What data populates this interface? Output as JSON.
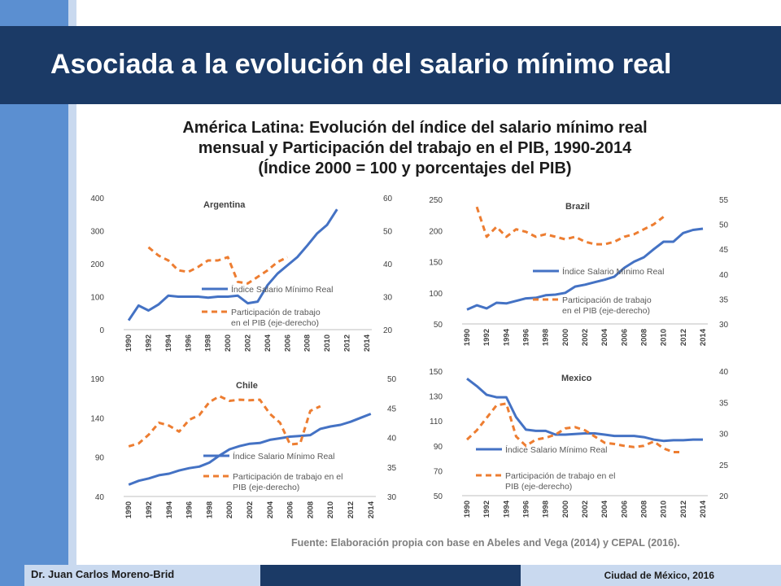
{
  "slide": {
    "title": "Asociada a la evolución del salario mínimo real",
    "subtitle_lines": [
      "América Latina: Evolución del índice del salario mínimo real",
      "mensual y Participación del trabajo en el PIB, 1990-2014",
      "(Índice 2000 = 100 y porcentajes del PIB)"
    ],
    "source": "Fuente: Elaboración propia con base en Abeles and Vega (2014) y CEPAL (2016).",
    "footer_author": "Dr. Juan Carlos Moreno-Brid",
    "footer_city": "Ciudad de México, 2016"
  },
  "colors": {
    "header_bg": "#1b3a66",
    "left_bar": "#5b8fd1",
    "salary_line": "#4472c4",
    "labor_share_line": "#ed7d31"
  },
  "chart_data": [
    {
      "type": "line",
      "title": "Argentina",
      "x": [
        1990,
        1991,
        1992,
        1993,
        1994,
        1995,
        1996,
        1997,
        1998,
        1999,
        2000,
        2001,
        2002,
        2003,
        2004,
        2005,
        2006,
        2007,
        2008,
        2009,
        2010,
        2011,
        2012,
        2013,
        2014
      ],
      "x_ticks": [
        "1990",
        "1992",
        "1994",
        "1996",
        "1998",
        "2000",
        "2002",
        "2004",
        "2006",
        "2008",
        "2010",
        "2012",
        "2014"
      ],
      "y_left": {
        "lim": [
          0,
          400
        ],
        "ticks": [
          "0",
          "100",
          "200",
          "300",
          "400"
        ]
      },
      "y_right": {
        "lim": [
          20,
          60
        ],
        "ticks": [
          "20",
          "30",
          "40",
          "50",
          "60"
        ]
      },
      "series": [
        {
          "name": "Índice Salario Mínimo Real",
          "axis": "left",
          "style": "solid",
          "values": [
            28,
            73,
            58,
            76,
            103,
            100,
            100,
            100,
            97,
            100,
            100,
            103,
            80,
            85,
            135,
            170,
            195,
            220,
            255,
            292,
            318,
            365,
            null,
            null,
            null
          ]
        },
        {
          "name": "Participación de trabajo en el PIB (eje-derecho)",
          "axis": "right",
          "style": "dashed",
          "values": [
            null,
            null,
            45,
            42.5,
            41,
            38,
            37.5,
            39,
            41,
            41,
            42,
            34.5,
            34,
            36,
            38,
            40.5,
            42,
            null,
            null,
            null,
            null,
            null,
            null,
            null,
            null
          ]
        }
      ],
      "legend": "center-right"
    },
    {
      "type": "line",
      "title": "Brazil",
      "x": [
        1990,
        1991,
        1992,
        1993,
        1994,
        1995,
        1996,
        1997,
        1998,
        1999,
        2000,
        2001,
        2002,
        2003,
        2004,
        2005,
        2006,
        2007,
        2008,
        2009,
        2010,
        2011,
        2012,
        2013,
        2014
      ],
      "x_ticks": [
        "1990",
        "1992",
        "1994",
        "1996",
        "1998",
        "2000",
        "2002",
        "2004",
        "2006",
        "2008",
        "2010",
        "2012",
        "2014"
      ],
      "y_left": {
        "lim": [
          50,
          250
        ],
        "ticks": [
          "50",
          "100",
          "150",
          "200",
          "250"
        ]
      },
      "y_right": {
        "lim": [
          30,
          55
        ],
        "ticks": [
          "30",
          "35",
          "40",
          "45",
          "50",
          "55"
        ]
      },
      "series": [
        {
          "name": "Índice Salario Mínimo Real",
          "axis": "left",
          "style": "solid",
          "values": [
            73,
            80,
            75,
            84,
            83,
            87,
            91,
            92,
            96,
            97,
            100,
            110,
            113,
            117,
            121,
            126,
            140,
            150,
            157,
            170,
            182,
            182,
            196,
            201,
            203
          ]
        },
        {
          "name": "Participación de trabajo en el PIB (eje-derecho)",
          "axis": "right",
          "style": "dashed",
          "values": [
            null,
            53.5,
            47.5,
            49.5,
            47.5,
            49,
            48.5,
            47.5,
            48,
            47.5,
            47,
            47.5,
            46.5,
            46,
            46,
            46.5,
            47.5,
            48,
            49,
            50,
            51.5,
            null,
            null,
            null,
            null
          ]
        }
      ],
      "legend": "center-right"
    },
    {
      "type": "line",
      "title": "Chile",
      "x": [
        1990,
        1991,
        1992,
        1993,
        1994,
        1995,
        1996,
        1997,
        1998,
        1999,
        2000,
        2001,
        2002,
        2003,
        2004,
        2005,
        2006,
        2007,
        2008,
        2009,
        2010,
        2011,
        2012,
        2013,
        2014
      ],
      "x_ticks": [
        "1990",
        "1992",
        "1994",
        "1996",
        "1998",
        "2000",
        "2002",
        "2004",
        "2006",
        "2008",
        "2010",
        "2012",
        "2014"
      ],
      "y_left": {
        "lim": [
          40,
          190
        ],
        "ticks": [
          "40",
          "90",
          "140",
          "190"
        ]
      },
      "y_right": {
        "lim": [
          30,
          50
        ],
        "ticks": [
          "30",
          "35",
          "40",
          "45",
          "50"
        ]
      },
      "series": [
        {
          "name": "Índice Salario Mínimo Real",
          "axis": "left",
          "style": "solid",
          "values": [
            55,
            60,
            63,
            67,
            69,
            73,
            76,
            78,
            83,
            92,
            100,
            104,
            107,
            108,
            112,
            114,
            116,
            117,
            118,
            126,
            129,
            131,
            135,
            140,
            145
          ]
        },
        {
          "name": "Participación de trabajo en el PIB (eje-derecho)",
          "axis": "right",
          "style": "dashed",
          "values": [
            38.5,
            39,
            40.5,
            42.5,
            42,
            41,
            43,
            43.8,
            46,
            47,
            46.2,
            46.4,
            46.3,
            46.4,
            44,
            42.5,
            38.8,
            39,
            44.5,
            45.3,
            null,
            null,
            null,
            null,
            null
          ]
        }
      ],
      "legend": "center-right"
    },
    {
      "type": "line",
      "title": "Mexico",
      "x": [
        1990,
        1991,
        1992,
        1993,
        1994,
        1995,
        1996,
        1997,
        1998,
        1999,
        2000,
        2001,
        2002,
        2003,
        2004,
        2005,
        2006,
        2007,
        2008,
        2009,
        2010,
        2011,
        2012,
        2013,
        2014
      ],
      "x_ticks": [
        "1990",
        "1992",
        "1994",
        "1996",
        "1998",
        "2000",
        "2002",
        "2004",
        "2006",
        "2008",
        "2010",
        "2012",
        "2014"
      ],
      "y_left": {
        "lim": [
          50,
          150
        ],
        "ticks": [
          "50",
          "70",
          "90",
          "110",
          "130",
          "150"
        ]
      },
      "y_right": {
        "lim": [
          20,
          40
        ],
        "ticks": [
          "20",
          "25",
          "30",
          "35",
          "40"
        ]
      },
      "series": [
        {
          "name": "Índice Salario Mínimo Real",
          "axis": "left",
          "style": "solid",
          "values": [
            144,
            138,
            131,
            129,
            129,
            113,
            103,
            102,
            102,
            99,
            99,
            99.5,
            100,
            100,
            99,
            98,
            98,
            98,
            97,
            95,
            94,
            94.5,
            94.5,
            95,
            95
          ]
        },
        {
          "name": "Participación de trabajo en el PIB (eje-derecho)",
          "axis": "right",
          "style": "dashed",
          "values": [
            29,
            30.5,
            32.5,
            34.5,
            34.8,
            29.5,
            28,
            29,
            29.3,
            29.8,
            30.8,
            31,
            30.5,
            29.5,
            28.5,
            28.3,
            28,
            27.8,
            28,
            28.7,
            27.6,
            27,
            27,
            null,
            null
          ]
        }
      ],
      "legend": "center-right"
    }
  ]
}
